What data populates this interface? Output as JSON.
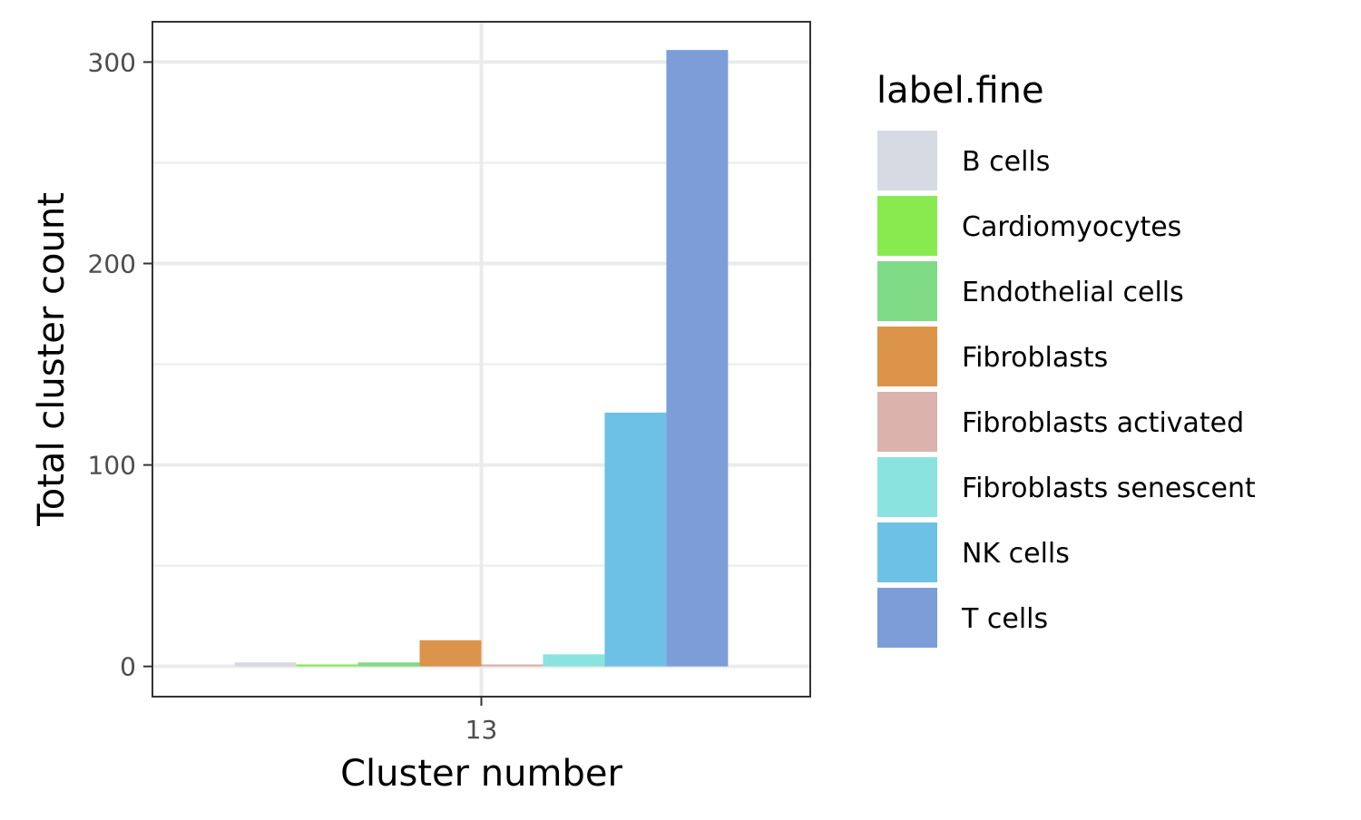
{
  "chart_data": {
    "type": "bar",
    "categories": [
      "13"
    ],
    "series": [
      {
        "name": "B cells",
        "values": [
          2
        ],
        "color": "#D6DAE2"
      },
      {
        "name": "Cardiomyocytes",
        "values": [
          1
        ],
        "color": "#89EA50"
      },
      {
        "name": "Endothelial cells",
        "values": [
          2
        ],
        "color": "#80DB86"
      },
      {
        "name": "Fibroblasts",
        "values": [
          13
        ],
        "color": "#DB944A"
      },
      {
        "name": "Fibroblasts activated",
        "values": [
          1
        ],
        "color": "#DBB2AC"
      },
      {
        "name": "Fibroblasts senescent",
        "values": [
          6
        ],
        "color": "#8AE3DF"
      },
      {
        "name": "NK cells",
        "values": [
          126
        ],
        "color": "#6DC1E4"
      },
      {
        "name": "T cells",
        "values": [
          306
        ],
        "color": "#7C9DD8"
      }
    ],
    "xlabel": "Cluster number",
    "ylabel": "Total cluster count",
    "ylim": [
      -15,
      320
    ],
    "yticks": [
      0,
      100,
      200,
      300
    ],
    "grid": true,
    "legend": {
      "title": "label.fine",
      "position": "right"
    }
  }
}
